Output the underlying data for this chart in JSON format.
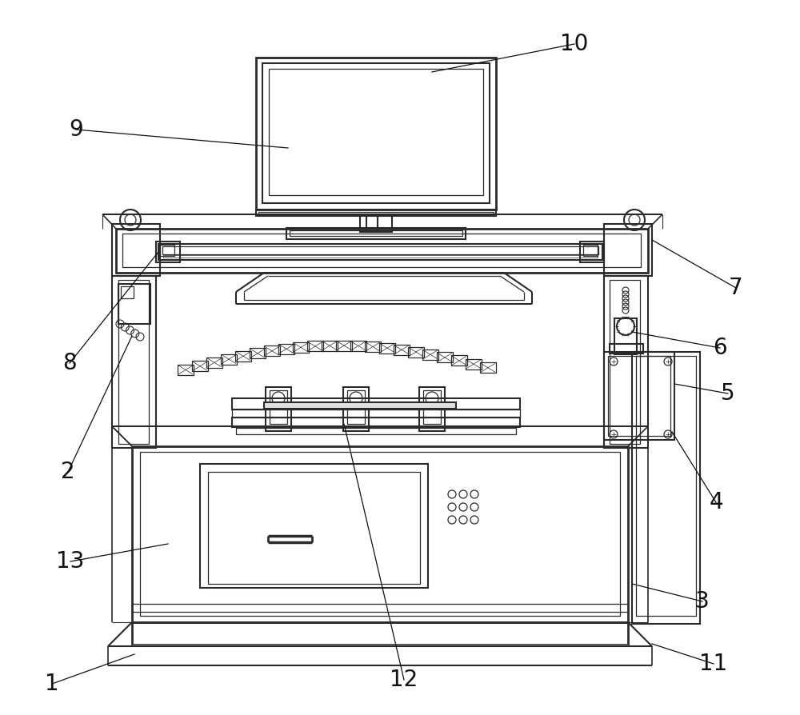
{
  "bg_color": "#ffffff",
  "lc": "#2a2a2a",
  "lw": 1.5,
  "tlw": 0.9,
  "alw": 0.9,
  "fs": 20,
  "ac": "#111111",
  "figsize": [
    10.0,
    8.94
  ]
}
